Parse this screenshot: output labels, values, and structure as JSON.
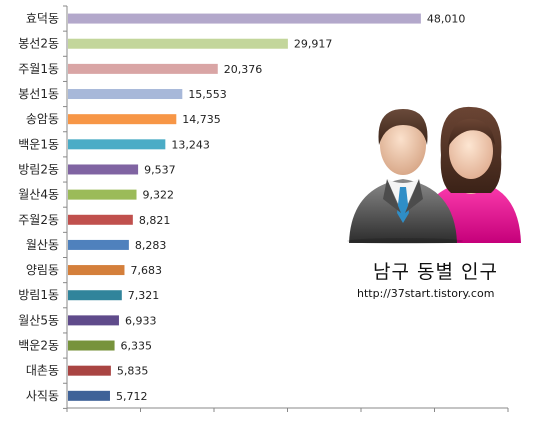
{
  "chart_data": {
    "type": "bar",
    "orientation": "horizontal",
    "title": "남구 동별 인구",
    "subtitle": "http://37start.tistory.com",
    "categories": [
      "효덕동",
      "봉선2동",
      "주월1동",
      "봉선1동",
      "송암동",
      "백운1동",
      "방림2동",
      "월산4동",
      "주월2동",
      "월산동",
      "양림동",
      "방림1동",
      "월산5동",
      "백운2동",
      "대촌동",
      "사직동"
    ],
    "values": [
      48010,
      29917,
      20376,
      15553,
      14735,
      13243,
      9537,
      9322,
      8821,
      8283,
      7683,
      7321,
      6933,
      6335,
      5835,
      5712
    ],
    "value_labels": [
      "48,010",
      "29,917",
      "20,376",
      "15,553",
      "14,735",
      "13,243",
      "9,537",
      "9,322",
      "8,821",
      "8,283",
      "7,683",
      "7,321",
      "6,933",
      "6,335",
      "5,835",
      "5,712"
    ],
    "colors": [
      "#b3a8cb",
      "#c3d69b",
      "#d9a5a5",
      "#a7b8d9",
      "#f79646",
      "#4bacc6",
      "#8064a2",
      "#9bbb59",
      "#c0504d",
      "#4f81bd",
      "#d47f3b",
      "#31849b",
      "#5f4b8b",
      "#77933c",
      "#a94442",
      "#3f6298"
    ],
    "xlim": [
      0,
      60000
    ],
    "grid": false,
    "legend": "none"
  }
}
